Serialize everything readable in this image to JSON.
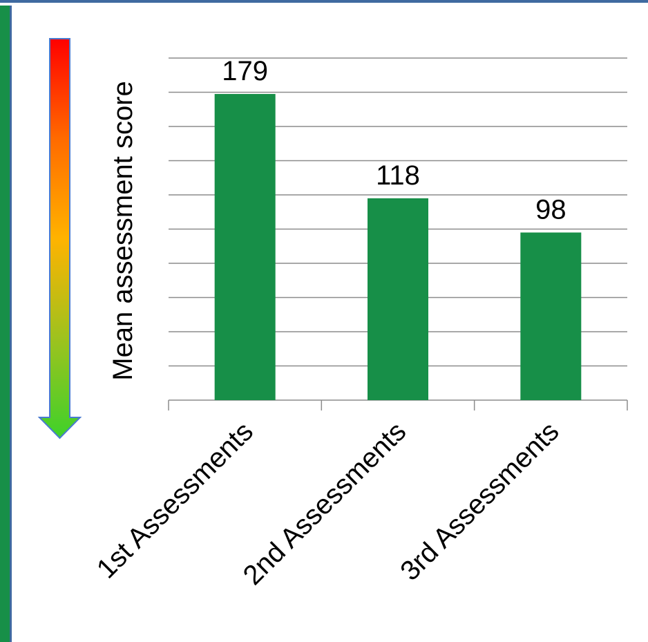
{
  "chart_data": {
    "type": "bar",
    "categories": [
      "1st Assessments",
      "2nd Assessments",
      "3rd Assessments"
    ],
    "values": [
      179,
      118,
      98
    ],
    "title": "",
    "xlabel": "",
    "ylabel": "Mean  assessment score",
    "ylim": [
      0,
      200
    ],
    "grid": true,
    "legend": "none",
    "bar_color": "#178f48",
    "gridline_color": "#8c8c8c",
    "arrow_gradient": [
      "#ff0000",
      "#ff6a00",
      "#ffb300",
      "#9ec21e",
      "#3fd12a"
    ],
    "arrow_outline_color": "#4a7bd0"
  }
}
